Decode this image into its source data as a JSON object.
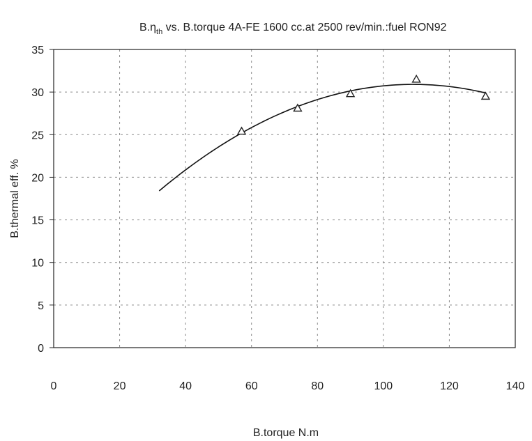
{
  "chart_data": {
    "type": "scatter",
    "title": {
      "prefix": "B.η",
      "subscript": "th",
      "rest": "  vs. B.torque 4A-FE 1600 cc.at 2500 rev/min.:fuel RON92"
    },
    "xlabel": "B.torque N.m",
    "ylabel": "B.thermal eff. %",
    "xlim": [
      0,
      140
    ],
    "ylim": [
      0,
      35
    ],
    "x_ticks": [
      0,
      20,
      40,
      60,
      80,
      100,
      120,
      140
    ],
    "y_ticks": [
      0,
      5,
      10,
      15,
      20,
      25,
      30,
      35
    ],
    "grid": true,
    "series": [
      {
        "marker": "triangle-open",
        "x": [
          57,
          74,
          90,
          110,
          131
        ],
        "y": [
          25.4,
          28.1,
          29.8,
          31.5,
          29.5
        ]
      }
    ],
    "trendline": {
      "type": "polynomial-2",
      "x_range": [
        32,
        131
      ],
      "coefficients": [
        -0.002102,
        0.4587,
        5.877
      ]
    },
    "colors": {
      "axis": "#222222",
      "grid": "#8a8a8a",
      "curve": "#111111",
      "marker": "#222222"
    }
  }
}
